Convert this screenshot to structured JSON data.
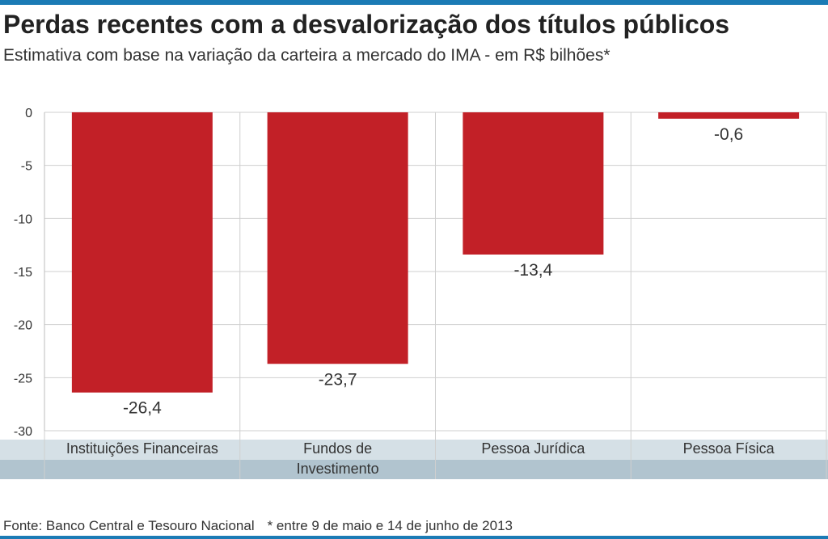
{
  "header": {
    "title": "Perdas recentes com a desvalorização dos títulos públicos",
    "subtitle": "Estimativa com base na variação da carteira a mercado do IMA - em R$ bilhões*"
  },
  "footer": {
    "source": "Fonte: Banco Central e Tesouro Nacional",
    "note": "* entre 9 de maio e 14 de junho de 2013"
  },
  "colors": {
    "accent": "#1b7bb5",
    "bar": "#c22027",
    "label_band": "#b1c4cf",
    "grid": "#cfcfcf"
  },
  "chart_data": {
    "type": "bar",
    "title": "Perdas recentes com a desvalorização dos títulos públicos",
    "xlabel": "",
    "ylabel": "R$ bilhões",
    "ylim": [
      -30,
      0
    ],
    "yticks": [
      0,
      -5,
      -10,
      -15,
      -20,
      -25,
      -30
    ],
    "ytick_labels": [
      "0",
      "-5",
      "-10",
      "-15",
      "-20",
      "-25",
      "-30"
    ],
    "grid": true,
    "categories": [
      [
        "Instituições Financeiras"
      ],
      [
        "Fundos de",
        "Investimento"
      ],
      [
        "Pessoa Jurídica"
      ],
      [
        "Pessoa Física"
      ]
    ],
    "values": [
      -26.4,
      -23.7,
      -13.4,
      -0.6
    ],
    "value_labels": [
      "-26,4",
      "-23,7",
      "-13,4",
      "-0,6"
    ]
  }
}
